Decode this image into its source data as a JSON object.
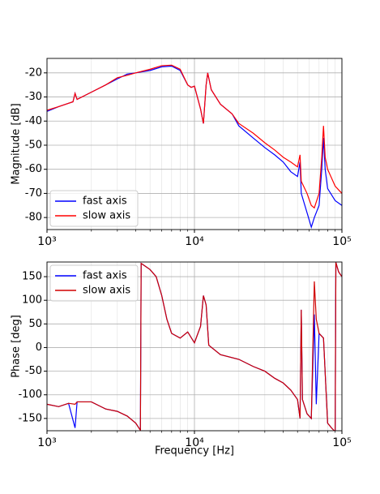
{
  "chart_data": [
    {
      "type": "line",
      "ylabel": "Magnitude [dB]",
      "xscale": "log",
      "grid": true,
      "legend": "lower left",
      "xlim": [
        1000,
        100000
      ],
      "ylim": [
        -85,
        -14
      ],
      "xticks": [
        {
          "value": 1000,
          "label": "10³"
        },
        {
          "value": 10000,
          "label": "10⁴"
        },
        {
          "value": 100000,
          "label": "10⁵"
        }
      ],
      "xminorticks": [
        2000,
        3000,
        4000,
        5000,
        6000,
        7000,
        8000,
        9000,
        20000,
        30000,
        40000,
        50000,
        60000,
        70000,
        80000,
        90000
      ],
      "yticks": [
        -20,
        -30,
        -40,
        -50,
        -60,
        -70,
        -80
      ],
      "x": [
        1000,
        1200,
        1500,
        1550,
        1600,
        2000,
        2500,
        3000,
        3500,
        4000,
        5000,
        6000,
        7000,
        8000,
        9000,
        9500,
        10000,
        11000,
        11500,
        12000,
        12300,
        13000,
        15000,
        18000,
        20000,
        25000,
        30000,
        35000,
        40000,
        45000,
        50000,
        52000,
        53000,
        58000,
        62000,
        65000,
        70000,
        73000,
        75000,
        77000,
        80000,
        90000,
        100000
      ],
      "series": [
        {
          "name": "fast axis",
          "color": "#0000ff",
          "values": [
            -36,
            -34,
            -32,
            -28.5,
            -31,
            -28,
            -25,
            -22.5,
            -20.5,
            -20,
            -19,
            -17.5,
            -17.2,
            -19,
            -25,
            -26,
            -25.5,
            -35,
            -41,
            -25,
            -20,
            -27,
            -33,
            -37,
            -42,
            -47,
            -51,
            -54,
            -57,
            -61,
            -63,
            -57,
            -70,
            -78,
            -84,
            -80,
            -75,
            -60,
            -47,
            -60,
            -68,
            -73,
            -75
          ]
        },
        {
          "name": "slow axis",
          "color": "#ff0000",
          "values": [
            -35.5,
            -34,
            -32,
            -28.5,
            -31,
            -28,
            -25,
            -22,
            -21,
            -20,
            -18.5,
            -17,
            -16.8,
            -18.5,
            -25,
            -26,
            -25.5,
            -35,
            -41,
            -25,
            -20,
            -27,
            -33,
            -37,
            -41,
            -45,
            -49,
            -52,
            -55,
            -57,
            -59,
            -54,
            -65,
            -70,
            -75,
            -76,
            -70,
            -55,
            -42,
            -55,
            -60,
            -67,
            -70
          ]
        }
      ]
    },
    {
      "type": "line",
      "ylabel": "Phase [deg]",
      "xlabel": "Frequency [Hz]",
      "xscale": "log",
      "grid": true,
      "legend": "upper left",
      "xlim": [
        1000,
        100000
      ],
      "ylim": [
        -176,
        181
      ],
      "xticks": [
        {
          "value": 1000,
          "label": "10³"
        },
        {
          "value": 10000,
          "label": "10⁴"
        },
        {
          "value": 100000,
          "label": "10⁵"
        }
      ],
      "xminorticks": [
        2000,
        3000,
        4000,
        5000,
        6000,
        7000,
        8000,
        9000,
        20000,
        30000,
        40000,
        50000,
        60000,
        70000,
        80000,
        90000
      ],
      "yticks": [
        150,
        100,
        50,
        0,
        -50,
        -100,
        -150
      ],
      "x": [
        1000,
        1200,
        1400,
        1550,
        1600,
        2000,
        2500,
        3000,
        3500,
        4000,
        4300,
        4350,
        4500,
        5000,
        5500,
        6000,
        6500,
        7000,
        8000,
        9000,
        10000,
        11000,
        11500,
        12000,
        12500,
        15000,
        20000,
        25000,
        30000,
        35000,
        40000,
        45000,
        50000,
        52000,
        53000,
        54000,
        58000,
        62000,
        65000,
        67000,
        70000,
        75000,
        80000,
        85000,
        90000,
        91000,
        95000,
        100000
      ],
      "series": [
        {
          "name": "fast axis",
          "color": "#0000ff",
          "values": [
            -120,
            -125,
            -118,
            -170,
            -115,
            -115,
            -130,
            -135,
            -145,
            -160,
            -175,
            178,
            175,
            165,
            150,
            110,
            60,
            30,
            20,
            33,
            10,
            45,
            110,
            90,
            5,
            -15,
            -25,
            -40,
            -50,
            -65,
            -75,
            -90,
            -110,
            -150,
            80,
            -110,
            -140,
            -150,
            70,
            -120,
            30,
            20,
            -160,
            -170,
            -178,
            180,
            160,
            150
          ]
        },
        {
          "name": "slow axis",
          "color": "#d00000",
          "values": [
            -120,
            -125,
            -118,
            -120,
            -115,
            -115,
            -130,
            -135,
            -145,
            -160,
            -175,
            178,
            175,
            165,
            150,
            110,
            60,
            30,
            20,
            33,
            10,
            45,
            110,
            90,
            5,
            -15,
            -25,
            -40,
            -50,
            -65,
            -75,
            -90,
            -110,
            -150,
            80,
            -110,
            -140,
            -150,
            140,
            60,
            30,
            20,
            -160,
            -170,
            -178,
            180,
            160,
            150
          ]
        }
      ]
    }
  ]
}
